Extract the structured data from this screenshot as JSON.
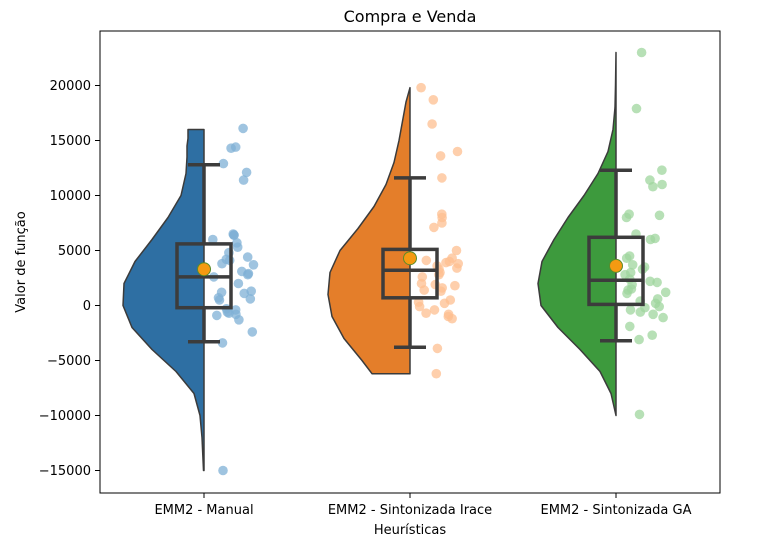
{
  "chart_data": {
    "type": "raincloud",
    "title": "Compra e Venda",
    "xlabel": "Heurísticas",
    "ylabel": "Valor de função",
    "ylim": [
      -17000,
      25000
    ],
    "yticks": [
      -15000,
      -10000,
      -5000,
      0,
      5000,
      10000,
      15000,
      20000
    ],
    "categories": [
      "EMM2 - Manual",
      "EMM2 - Sintonizada Irace",
      "EMM2 - Sintonizada GA"
    ],
    "series": [
      {
        "category": "EMM2 - Manual",
        "color": "#2e6fa3",
        "dot_color": "#7fb0d6",
        "box": {
          "q1": -200,
          "median": 2600,
          "q3": 5600,
          "whisker_low": -3300,
          "whisker_high": 12800
        },
        "mean": 3300,
        "violin_range": [
          -15000,
          16000
        ],
        "violin_profile": [
          [
            -15000,
            0.5
          ],
          [
            -14000,
            1
          ],
          [
            -12000,
            2
          ],
          [
            -10000,
            4
          ],
          [
            -8000,
            10
          ],
          [
            -6000,
            28
          ],
          [
            -4000,
            52
          ],
          [
            -2000,
            72
          ],
          [
            0,
            81
          ],
          [
            2000,
            80
          ],
          [
            4000,
            69
          ],
          [
            6000,
            52
          ],
          [
            8000,
            36
          ],
          [
            10000,
            23
          ],
          [
            12000,
            18
          ],
          [
            13500,
            17
          ],
          [
            14500,
            17
          ],
          [
            15200,
            16
          ],
          [
            16000,
            16
          ]
        ],
        "points": [
          16100,
          14400,
          14300,
          12900,
          12100,
          11400,
          6500,
          6400,
          6400,
          6000,
          5700,
          5300,
          4800,
          4400,
          4200,
          4100,
          3800,
          3700,
          3100,
          2900,
          2800,
          2600,
          2000,
          1300,
          1200,
          1100,
          700,
          600,
          500,
          -300,
          -400,
          -600,
          -700,
          -800,
          -900,
          -1300,
          -2400,
          -3400,
          -15000
        ]
      },
      {
        "category": "EMM2 - Sintonizada Irace",
        "color": "#e47e2a",
        "dot_color": "#fdbf90",
        "box": {
          "q1": 700,
          "median": 3200,
          "q3": 5100,
          "whisker_low": -3800,
          "whisker_high": 11600
        },
        "mean": 4300,
        "violin_range": [
          -6200,
          19800
        ],
        "violin_profile": [
          [
            -6200,
            38
          ],
          [
            -5000,
            48
          ],
          [
            -3000,
            66
          ],
          [
            -1000,
            78
          ],
          [
            1000,
            82
          ],
          [
            3000,
            80
          ],
          [
            5000,
            70
          ],
          [
            7000,
            52
          ],
          [
            9000,
            36
          ],
          [
            11000,
            24
          ],
          [
            13000,
            16
          ],
          [
            15000,
            11
          ],
          [
            17000,
            7
          ],
          [
            18500,
            4
          ],
          [
            19800,
            0
          ]
        ],
        "points": [
          19800,
          18700,
          16500,
          14000,
          13600,
          11600,
          8300,
          8000,
          7500,
          7100,
          5000,
          4300,
          4100,
          4000,
          3900,
          3800,
          3600,
          3400,
          3300,
          3000,
          2800,
          2600,
          2000,
          1900,
          1800,
          1600,
          1400,
          1300,
          500,
          300,
          200,
          -100,
          -400,
          -700,
          -800,
          -1000,
          -1200,
          -3900,
          -6200
        ]
      },
      {
        "category": "EMM2 - Sintonizada GA",
        "color": "#3d9a3d",
        "dot_color": "#9fd69d",
        "box": {
          "q1": 100,
          "median": 2300,
          "q3": 6200,
          "whisker_low": -3200,
          "whisker_high": 12300
        },
        "mean": 3600,
        "violin_range": [
          -10000,
          23000
        ],
        "violin_profile": [
          [
            -10000,
            0
          ],
          [
            -8000,
            5
          ],
          [
            -6000,
            16
          ],
          [
            -4000,
            36
          ],
          [
            -2000,
            58
          ],
          [
            0,
            75
          ],
          [
            2000,
            78
          ],
          [
            4000,
            74
          ],
          [
            6000,
            62
          ],
          [
            8000,
            48
          ],
          [
            10000,
            32
          ],
          [
            12000,
            18
          ],
          [
            14000,
            8
          ],
          [
            16000,
            3
          ],
          [
            18000,
            1
          ],
          [
            20000,
            0.5
          ],
          [
            23000,
            0
          ]
        ],
        "points": [
          23000,
          17900,
          12300,
          11400,
          11000,
          10800,
          8300,
          8200,
          8000,
          6500,
          6100,
          6000,
          4500,
          4300,
          3700,
          3500,
          3300,
          3000,
          2800,
          2400,
          2200,
          2100,
          1900,
          1500,
          1400,
          1200,
          1100,
          600,
          400,
          200,
          -100,
          -200,
          -400,
          -600,
          -800,
          -1100,
          -1900,
          -2700,
          -3100,
          -9900
        ]
      }
    ]
  }
}
